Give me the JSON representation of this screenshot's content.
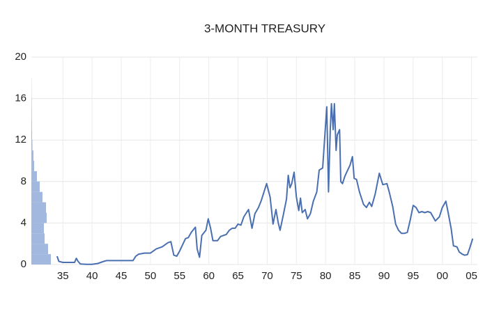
{
  "chart_data": [
    {
      "type": "line",
      "title": "3-MONTH TREASURY",
      "color": "#4a6fb0",
      "grid": true,
      "xlim": [
        1929.6,
        2006
      ],
      "ylim": [
        0,
        20
      ],
      "yticks": [
        0,
        4,
        8,
        12,
        16,
        20
      ],
      "xticks": [
        {
          "value": 1935,
          "label": "35"
        },
        {
          "value": 1940,
          "label": "40"
        },
        {
          "value": 1945,
          "label": "45"
        },
        {
          "value": 1950,
          "label": "50"
        },
        {
          "value": 1955,
          "label": "55"
        },
        {
          "value": 1960,
          "label": "60"
        },
        {
          "value": 1965,
          "label": "65"
        },
        {
          "value": 1970,
          "label": "70"
        },
        {
          "value": 1975,
          "label": "75"
        },
        {
          "value": 1980,
          "label": "80"
        },
        {
          "value": 1985,
          "label": "85"
        },
        {
          "value": 1990,
          "label": "90"
        },
        {
          "value": 1995,
          "label": "95"
        },
        {
          "value": 2000,
          "label": "00"
        },
        {
          "value": 2005,
          "label": "05"
        }
      ],
      "x": [
        1934.0,
        1934.3,
        1935,
        1936,
        1937,
        1937.3,
        1937.6,
        1938,
        1939,
        1940,
        1941,
        1941.5,
        1942,
        1942.5,
        1947,
        1947.5,
        1948,
        1949,
        1950,
        1951,
        1952,
        1953,
        1953.5,
        1954,
        1954.5,
        1955,
        1955.5,
        1956,
        1956.5,
        1957,
        1957.7,
        1958,
        1958.4,
        1958.8,
        1959.5,
        1959.9,
        1960.3,
        1960.7,
        1961,
        1961.5,
        1962,
        1962.5,
        1963,
        1963.5,
        1964,
        1964.5,
        1965,
        1965.5,
        1966,
        1966.8,
        1967.4,
        1967.9,
        1968.5,
        1969,
        1969.9,
        1970.5,
        1971,
        1971.5,
        1971.9,
        1972.2,
        1972.8,
        1973.3,
        1973.6,
        1973.9,
        1974.2,
        1974.6,
        1975,
        1975.4,
        1975.7,
        1976,
        1976.5,
        1976.9,
        1977.4,
        1977.9,
        1978.5,
        1978.9,
        1979.5,
        1979.8,
        1980.2,
        1980.5,
        1980.8,
        1981,
        1981.3,
        1981.5,
        1981.8,
        1982,
        1982.4,
        1982.6,
        1982.9,
        1983.3,
        1983.7,
        1984.2,
        1984.6,
        1984.9,
        1985.3,
        1985.8,
        1986.5,
        1987,
        1987.5,
        1987.9,
        1988.5,
        1989.2,
        1989.8,
        1990.5,
        1990.9,
        1991.5,
        1992,
        1992.5,
        1993,
        1993.5,
        1994,
        1994.5,
        1995,
        1995.5,
        1996,
        1996.5,
        1997,
        1997.5,
        1998,
        1998.8,
        1999.5,
        2000,
        2000.6,
        2001,
        2001.5,
        2001.9,
        2002.5,
        2002.9,
        2003.4,
        2003.8,
        2004.3,
        2004.7,
        2005.2
      ],
      "values": [
        0.8,
        0.3,
        0.2,
        0.2,
        0.2,
        0.6,
        0.3,
        0.05,
        0.02,
        0.02,
        0.1,
        0.2,
        0.3,
        0.375,
        0.375,
        0.8,
        1.0,
        1.1,
        1.1,
        1.5,
        1.7,
        2.1,
        2.2,
        0.9,
        0.8,
        1.3,
        1.9,
        2.5,
        2.6,
        3.1,
        3.6,
        1.5,
        0.7,
        2.8,
        3.3,
        4.4,
        3.5,
        2.3,
        2.3,
        2.3,
        2.7,
        2.8,
        2.9,
        3.3,
        3.5,
        3.5,
        3.9,
        3.8,
        4.6,
        5.3,
        3.5,
        4.9,
        5.5,
        6.2,
        7.8,
        6.5,
        3.9,
        5.3,
        4.0,
        3.3,
        4.9,
        6.3,
        8.6,
        7.4,
        7.8,
        8.9,
        6.5,
        5.2,
        6.4,
        5.0,
        5.3,
        4.4,
        4.9,
        6.1,
        7.0,
        9.1,
        9.3,
        11.8,
        15.2,
        7.0,
        13.0,
        15.5,
        13.0,
        15.5,
        11.0,
        12.5,
        13.0,
        8.0,
        7.8,
        8.5,
        9.0,
        9.6,
        10.4,
        8.3,
        8.2,
        7.0,
        5.8,
        5.5,
        6.0,
        5.6,
        6.8,
        8.8,
        7.7,
        7.8,
        7.0,
        5.6,
        3.9,
        3.3,
        3.0,
        3.0,
        3.1,
        4.3,
        5.7,
        5.5,
        5.0,
        5.1,
        5.0,
        5.1,
        5.0,
        4.2,
        4.6,
        5.5,
        6.1,
        5.0,
        3.5,
        1.8,
        1.7,
        1.2,
        1.0,
        0.9,
        0.95,
        1.6,
        2.5
      ]
    },
    {
      "type": "histogram",
      "orientation": "horizontal",
      "color": "#a3b8de",
      "xlim": [
        0,
        30
      ],
      "bins": [
        0,
        1,
        2,
        3,
        4,
        5,
        6,
        7,
        8,
        9,
        10,
        11,
        12,
        13,
        14,
        15,
        16,
        17,
        18
      ],
      "counts": [
        28,
        24,
        19,
        18,
        22,
        21,
        16,
        12,
        8,
        4,
        3,
        1.5,
        1,
        0.8,
        0.6,
        0.5,
        0.3,
        0.2
      ]
    }
  ]
}
